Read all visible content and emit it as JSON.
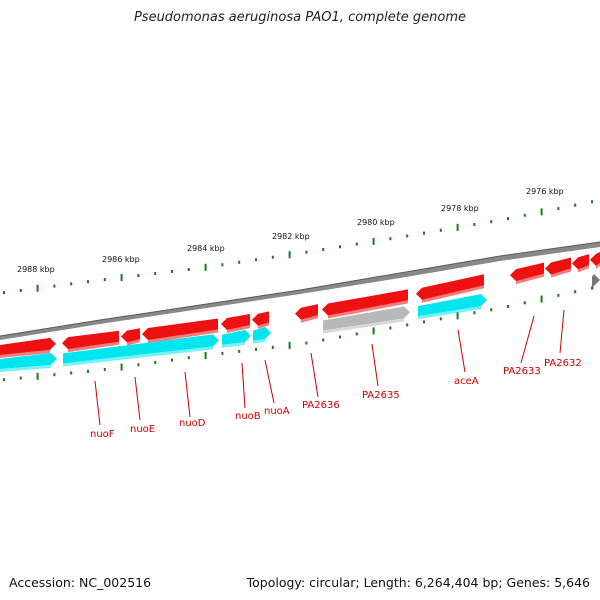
{
  "title": "Pseudomonas aeruginosa PAO1, complete genome",
  "footer": {
    "accession": "Accession: NC_002516",
    "topology": "Topology: circular; Length: 6,264,404 bp; Genes: 5,646"
  },
  "colors": {
    "plus_strand": "#ee1111",
    "minus_strand": "#00e5ee",
    "pseudo": "#b8b8b8",
    "backbone": "#888888",
    "ticks": "#1a7a1a",
    "label": "#cc0000"
  },
  "kbp_labels": [
    "2976 kbp",
    "2978 kbp",
    "2980 kbp",
    "2982 kbp",
    "2984 kbp",
    "2986 kbp",
    "2988 kbp"
  ],
  "gene_labels": [
    {
      "name": "nuoF"
    },
    {
      "name": "nuoE"
    },
    {
      "name": "nuoD"
    },
    {
      "name": "nuoB"
    },
    {
      "name": "nuoA"
    },
    {
      "name": "PA2636"
    },
    {
      "name": "PA2635"
    },
    {
      "name": "aceA"
    },
    {
      "name": "PA2633"
    },
    {
      "name": "PA2632"
    }
  ]
}
